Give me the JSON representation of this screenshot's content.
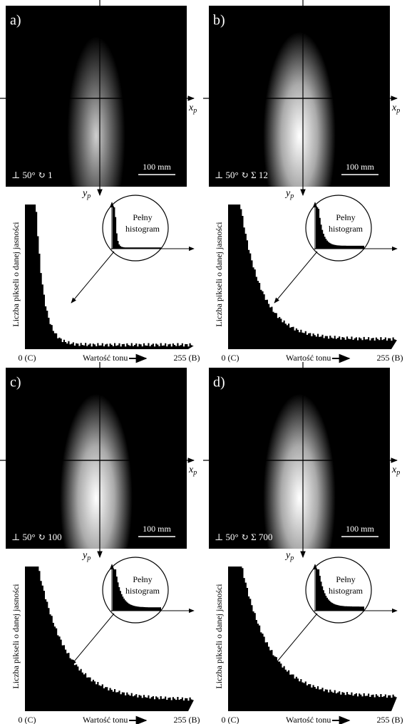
{
  "panels": [
    {
      "label": "a)",
      "caption": "⊥ 50° ↻ 1",
      "scale_bar": "100 mm",
      "x_axis": "x",
      "x_sub": "p",
      "y_axis": "y",
      "y_sub": "p",
      "histogram": {
        "y_label": "Liczba pikseli o danej jasności",
        "inset_line1": "Pełny",
        "inset_line2": "histogram",
        "x_min": "0 (C)",
        "x_label": "Wartość tonu",
        "x_max": "255 (B)"
      }
    },
    {
      "label": "b)",
      "caption": "⊥ 50° ↻ Σ 12",
      "scale_bar": "100 mm",
      "x_axis": "x",
      "x_sub": "p",
      "y_axis": "y",
      "y_sub": "p",
      "histogram": {
        "y_label": "Liczba pikseli o danej jasności",
        "inset_line1": "Pełny",
        "inset_line2": "histogram",
        "x_min": "0 (C)",
        "x_label": "Wartość tonu",
        "x_max": "255 (B)"
      }
    },
    {
      "label": "c)",
      "caption": "⊥ 50° ↻ 100",
      "scale_bar": "100 mm",
      "x_axis": "x",
      "x_sub": "p",
      "y_axis": "y",
      "y_sub": "p",
      "histogram": {
        "y_label": "Liczba pikseli o danej jasności",
        "inset_line1": "Pełny",
        "inset_line2": "histogram",
        "x_min": "0 (C)",
        "x_label": "Wartość tonu",
        "x_max": "255 (B)"
      }
    },
    {
      "label": "d)",
      "caption": "⊥ 50° ↻ Σ 700",
      "scale_bar": "100 mm",
      "x_axis": "x",
      "x_sub": "p",
      "y_axis": "y",
      "y_sub": "p",
      "histogram": {
        "y_label": "Liczba pikseli o danej jasności",
        "inset_line1": "Pełny",
        "inset_line2": "histogram",
        "x_min": "0 (C)",
        "x_label": "Wartość tonu",
        "x_max": "255 (B)"
      }
    }
  ]
}
